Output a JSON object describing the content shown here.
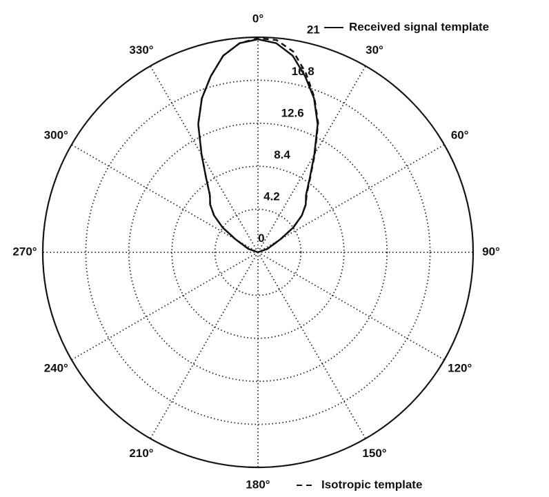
{
  "chart_data": {
    "type": "polar",
    "rlim": [
      0,
      21
    ],
    "rticks": [
      0,
      4.2,
      8.4,
      12.6,
      16.8,
      21
    ],
    "thetaticks": [
      {
        "value": 0,
        "label": "0°"
      },
      {
        "value": 30,
        "label": "30°"
      },
      {
        "value": 60,
        "label": "60°"
      },
      {
        "value": 90,
        "label": "90°"
      },
      {
        "value": 120,
        "label": "120°"
      },
      {
        "value": 150,
        "label": "150°"
      },
      {
        "value": 180,
        "label": "180°"
      },
      {
        "value": 210,
        "label": "210°"
      },
      {
        "value": 240,
        "label": "240°"
      },
      {
        "value": 270,
        "label": "270°"
      },
      {
        "value": 300,
        "label": "300°"
      },
      {
        "value": 330,
        "label": "330°"
      }
    ],
    "grid": true,
    "series": [
      {
        "name": "Received signal template",
        "color": "#111111",
        "style": "solid",
        "theta": [
          270,
          290,
          300,
          305,
          310,
          315,
          320,
          325,
          330,
          335,
          340,
          345,
          350,
          355,
          0,
          5,
          10,
          15,
          20,
          25,
          30,
          35,
          40,
          45,
          50,
          55,
          60,
          70,
          90
        ],
        "r": [
          0,
          1,
          2.5,
          4.2,
          5.6,
          6.6,
          7.3,
          8.8,
          11,
          13.8,
          16,
          17.8,
          19.5,
          20.5,
          20.8,
          20.5,
          19.5,
          17.8,
          16,
          13.8,
          11,
          8.8,
          7.3,
          6.6,
          5.6,
          4.2,
          2.5,
          1,
          0
        ]
      },
      {
        "name": "Isotropic template",
        "color": "#111111",
        "style": "dashed",
        "theta": [
          270,
          290,
          300,
          305,
          310,
          315,
          320,
          325,
          330,
          335,
          340,
          345,
          350,
          355,
          0,
          5,
          10,
          15,
          20,
          25,
          30,
          35,
          40,
          45,
          50,
          55,
          60,
          70,
          90
        ],
        "r": [
          0,
          1,
          2.5,
          4.2,
          5.6,
          6.6,
          7.3,
          8.8,
          11,
          13.8,
          16,
          17.8,
          19.5,
          20.5,
          20.9,
          20.8,
          19.9,
          18.1,
          16.1,
          13.9,
          11.1,
          8.9,
          7.4,
          6.6,
          5.6,
          4.2,
          2.5,
          1,
          0
        ]
      }
    ]
  }
}
